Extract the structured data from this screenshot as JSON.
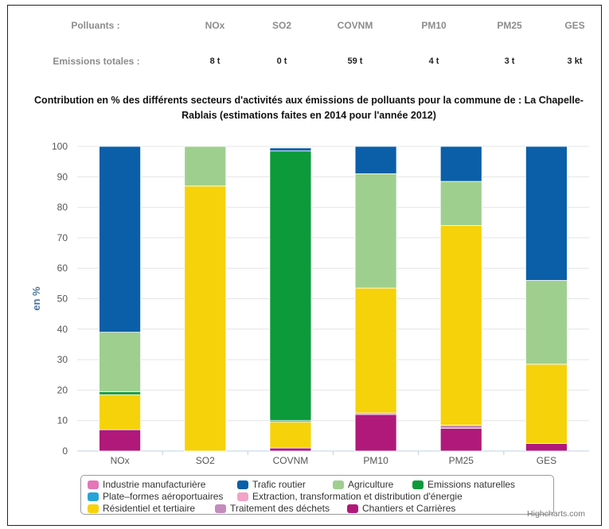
{
  "emissions_table": {
    "row_labels": [
      "Polluants :",
      "Emissions totales :"
    ],
    "pollutants": [
      "NOx",
      "SO2",
      "COVNM",
      "PM10",
      "PM25",
      "GES"
    ],
    "totals": [
      "8 t",
      "0 t",
      "59 t",
      "4 t",
      "3 t",
      "3 kt"
    ]
  },
  "credit": "Highcharts.com",
  "chart_data": {
    "type": "bar",
    "stacked": true,
    "title": "Contribution en % des différents secteurs d'activités aux émissions de polluants pour la commune de : La Chapelle-Rablais (estimations faites en 2014 pour l'année 2012)",
    "xlabel": "",
    "ylabel": "en %",
    "ylim": [
      0,
      100
    ],
    "yticks": [
      0,
      10,
      20,
      30,
      40,
      50,
      60,
      70,
      80,
      90,
      100
    ],
    "categories": [
      "NOx",
      "SO2",
      "COVNM",
      "PM10",
      "PM25",
      "GES"
    ],
    "grid": true,
    "legend_position": "bottom",
    "series": [
      {
        "name": "Industrie manufacturière",
        "color": "#e377b8",
        "values": [
          0,
          0,
          0,
          0,
          0,
          0
        ]
      },
      {
        "name": "Trafic routier",
        "color": "#0a5fa8",
        "values": [
          61,
          0,
          1,
          9,
          11.5,
          44
        ]
      },
      {
        "name": "Agriculture",
        "color": "#9fcf8f",
        "values": [
          19.5,
          13,
          0,
          37.5,
          14.5,
          27.5
        ]
      },
      {
        "name": "Emissions naturelles",
        "color": "#0c9a3a",
        "values": [
          1,
          0,
          88.5,
          0,
          0,
          0
        ]
      },
      {
        "name": "Plate–formes aéroportuaires",
        "color": "#27a3d8",
        "values": [
          0,
          0,
          0.5,
          0,
          0,
          0
        ]
      },
      {
        "name": "Extraction, transformation et distribution d'énergie",
        "color": "#f2a3c7",
        "values": [
          0,
          0,
          0,
          0,
          0,
          0
        ]
      },
      {
        "name": "Résidentiel et tertiaire",
        "color": "#f6d20a",
        "values": [
          11.5,
          87,
          8.5,
          41,
          65.5,
          26
        ]
      },
      {
        "name": "Traitement des déchets",
        "color": "#c58bbd",
        "values": [
          0,
          0,
          0,
          0.5,
          1,
          0
        ]
      },
      {
        "name": "Chantiers et Carrières",
        "color": "#b0197a",
        "values": [
          7,
          0,
          1,
          12,
          7.5,
          2.5
        ]
      }
    ]
  }
}
